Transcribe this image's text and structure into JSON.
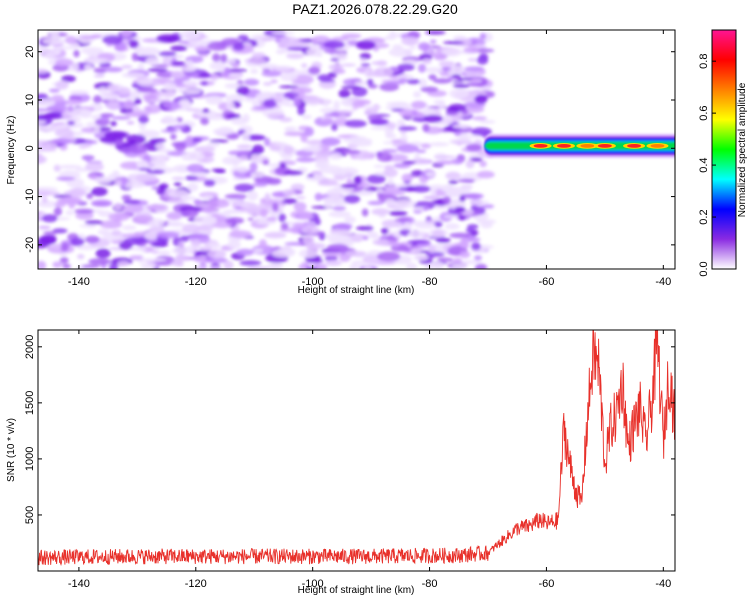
{
  "title": "PAZ1.2026.078.22.29.G20",
  "chart_data": [
    {
      "type": "heatmap",
      "title": "",
      "xlabel": "Height of straight line (km)",
      "ylabel": "Frequency (Hz)",
      "xlim": [
        -147,
        -38
      ],
      "ylim": [
        -25,
        24.5
      ],
      "xticks": [
        -140,
        -120,
        -100,
        -80,
        -60,
        -40
      ],
      "yticks": [
        -20,
        -10,
        0,
        10,
        20
      ],
      "noise_region": {
        "x": [
          -147,
          -70
        ],
        "y": [
          -25,
          24
        ]
      },
      "signal_band": {
        "x_start": -70.5,
        "x_end": -38,
        "center_hz": 0.5,
        "half_width_hz": 1.3,
        "peaks": [
          {
            "x": -61,
            "amplitude": 0.85
          },
          {
            "x": -57,
            "amplitude": 0.9
          },
          {
            "x": -53,
            "amplitude": 0.8
          },
          {
            "x": -50,
            "amplitude": 0.88
          },
          {
            "x": -45,
            "amplitude": 0.9
          },
          {
            "x": -41,
            "amplitude": 0.75
          }
        ]
      },
      "colorbar": {
        "label": "Normalized spectral amplitude",
        "ticks": [
          0.0,
          0.2,
          0.4,
          0.6,
          0.8
        ],
        "tick_labels": [
          "0.0",
          "0.2",
          "0.4",
          "0.6",
          "0.8"
        ],
        "range": [
          0,
          0.92
        ],
        "colors": [
          "#ffffff",
          "#8a2be2",
          "#0000ff",
          "#00ffff",
          "#00ff00",
          "#ffff00",
          "#ff8000",
          "#ff0000",
          "#ff1493"
        ]
      }
    },
    {
      "type": "line",
      "title": "",
      "xlabel": "Height of straight line (km)",
      "ylabel": "SNR (10 * v/v)",
      "xlim": [
        -147,
        -38
      ],
      "ylim": [
        0,
        2150
      ],
      "xticks": [
        -140,
        -120,
        -100,
        -80,
        -60,
        -40
      ],
      "yticks": [
        500,
        1000,
        1500,
        2000
      ],
      "series": [
        {
          "name": "SNR",
          "color": "#e8302a",
          "envelope_x": [
            -147,
            -130,
            -110,
            -90,
            -75,
            -70,
            -68,
            -65,
            -63,
            -61,
            -60,
            -58,
            -57,
            -56,
            -55,
            -54,
            -53,
            -52,
            -51,
            -50,
            -49,
            -48,
            -47,
            -46,
            -45,
            -44,
            -43,
            -42,
            -41,
            -40,
            -39,
            -38
          ],
          "envelope_y": [
            120,
            130,
            130,
            130,
            140,
            160,
            250,
            380,
            400,
            460,
            420,
            450,
            1280,
            950,
            720,
            600,
            1350,
            1950,
            1800,
            950,
            1280,
            1400,
            1700,
            1100,
            1300,
            1450,
            1150,
            1500,
            2050,
            1150,
            1800,
            1300
          ]
        }
      ]
    }
  ]
}
